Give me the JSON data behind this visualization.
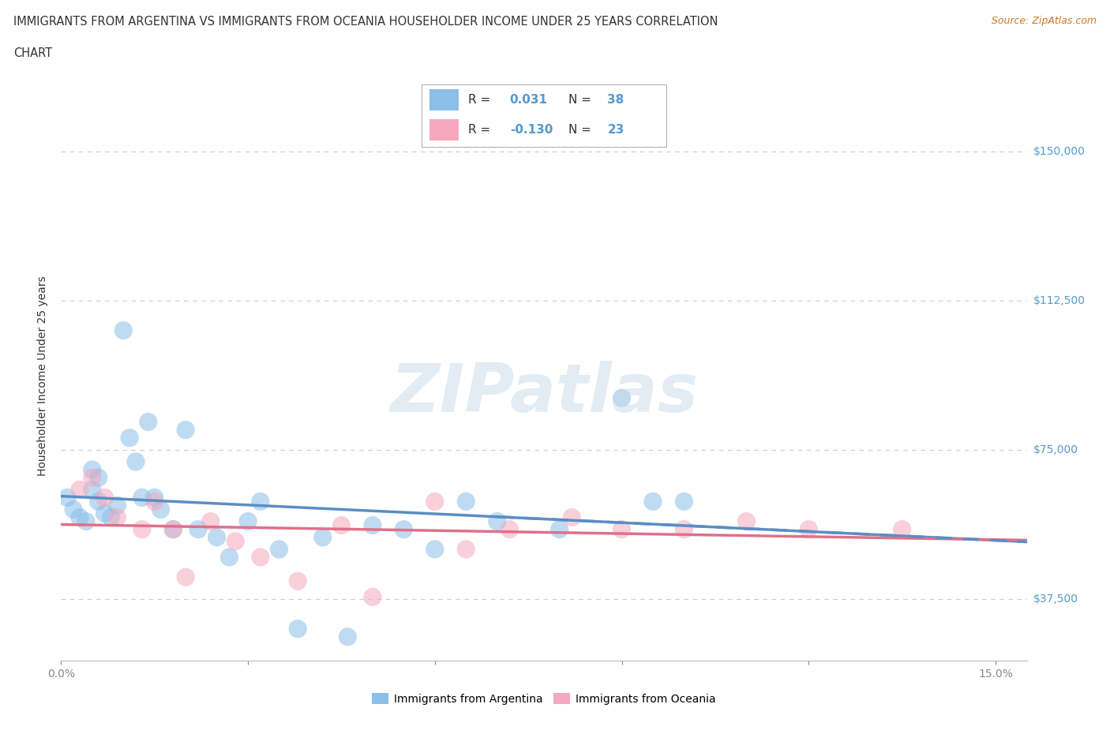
{
  "title_line1": "IMMIGRANTS FROM ARGENTINA VS IMMIGRANTS FROM OCEANIA HOUSEHOLDER INCOME UNDER 25 YEARS CORRELATION",
  "title_line2": "CHART",
  "source_text": "Source: ZipAtlas.com",
  "ylabel": "Householder Income Under 25 years",
  "xlim": [
    0.0,
    0.155
  ],
  "ylim": [
    22000,
    165000
  ],
  "xtick_positions": [
    0.0,
    0.03,
    0.06,
    0.09,
    0.12,
    0.15
  ],
  "xtick_labels": [
    "0.0%",
    "",
    "",
    "",
    "",
    "15.0%"
  ],
  "ytick_values": [
    37500,
    75000,
    112500,
    150000
  ],
  "ytick_labels": [
    "$37,500",
    "$75,000",
    "$112,500",
    "$150,000"
  ],
  "argentina_color": "#89bfe8",
  "oceania_color": "#f5a8be",
  "argentina_line_color": "#5b8ec4",
  "oceania_line_color": "#e0708a",
  "label_color": "#5599cc",
  "argentina_R": "0.031",
  "argentina_N": "38",
  "oceania_R": "-0.130",
  "oceania_N": "23",
  "argentina_scatter_x": [
    0.001,
    0.002,
    0.003,
    0.004,
    0.005,
    0.005,
    0.006,
    0.006,
    0.007,
    0.008,
    0.009,
    0.01,
    0.011,
    0.012,
    0.013,
    0.014,
    0.015,
    0.016,
    0.018,
    0.02,
    0.022,
    0.025,
    0.027,
    0.03,
    0.032,
    0.035,
    0.038,
    0.042,
    0.046,
    0.05,
    0.055,
    0.06,
    0.065,
    0.07,
    0.08,
    0.09,
    0.095,
    0.1
  ],
  "argentina_scatter_y": [
    63000,
    60000,
    58000,
    57000,
    65000,
    70000,
    68000,
    62000,
    59000,
    58000,
    61000,
    105000,
    78000,
    72000,
    63000,
    82000,
    63000,
    60000,
    55000,
    80000,
    55000,
    53000,
    48000,
    57000,
    62000,
    50000,
    30000,
    53000,
    28000,
    56000,
    55000,
    50000,
    62000,
    57000,
    55000,
    88000,
    62000,
    62000
  ],
  "oceania_scatter_x": [
    0.003,
    0.005,
    0.007,
    0.009,
    0.013,
    0.015,
    0.018,
    0.02,
    0.024,
    0.028,
    0.032,
    0.038,
    0.045,
    0.05,
    0.06,
    0.065,
    0.072,
    0.082,
    0.09,
    0.1,
    0.11,
    0.12,
    0.135
  ],
  "oceania_scatter_y": [
    65000,
    68000,
    63000,
    58000,
    55000,
    62000,
    55000,
    43000,
    57000,
    52000,
    48000,
    42000,
    56000,
    38000,
    62000,
    50000,
    55000,
    58000,
    55000,
    55000,
    57000,
    55000,
    55000
  ],
  "watermark_text": "ZIPatlas",
  "background_color": "#ffffff",
  "grid_color": "#cccccc"
}
